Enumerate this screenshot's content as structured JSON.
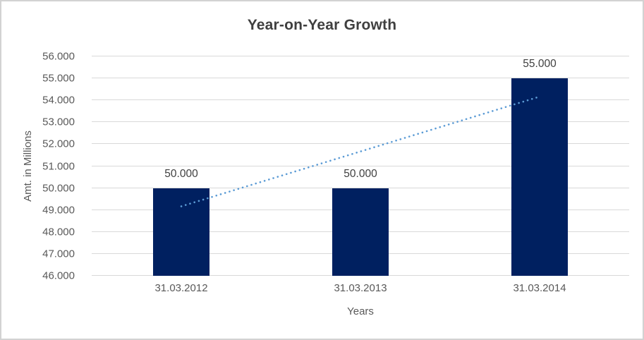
{
  "frame": {
    "background": "#ffffff",
    "border_color": "#d2d2d2"
  },
  "chart_data": {
    "type": "bar",
    "title": "Year-on-Year Growth",
    "xlabel": "Years",
    "ylabel": "Amt. in Millions",
    "categories": [
      "31.03.2012",
      "31.03.2013",
      "31.03.2014"
    ],
    "values": [
      50000,
      50000,
      55000
    ],
    "value_labels": [
      "50.000",
      "50.000",
      "55.000"
    ],
    "ylim": [
      46000,
      56000
    ],
    "ytick_step": 1000,
    "ytick_labels": [
      "46.000",
      "47.000",
      "48.000",
      "49.000",
      "50.000",
      "51.000",
      "52.000",
      "53.000",
      "54.000",
      "55.000",
      "56.000"
    ],
    "grid": true,
    "legend": "none",
    "colors": {
      "bar": "#002060",
      "gridline": "#d9d9d9",
      "tick_text": "#595959",
      "title_text": "#3f3f3f",
      "data_label_text": "#404040",
      "trendline": "#5b9bd5"
    },
    "trendline": {
      "type": "linear",
      "style": "dotted",
      "color": "#5b9bd5",
      "start": {
        "category_index": 0,
        "value": 49167
      },
      "end": {
        "category_index": 2,
        "value": 54167
      }
    }
  }
}
